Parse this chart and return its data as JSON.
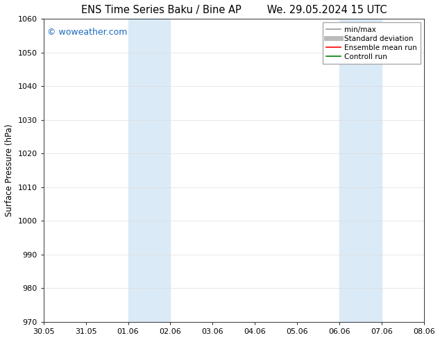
{
  "title_left": "ENS Time Series Baku / Bine AP",
  "title_right": "We. 29.05.2024 15 UTC",
  "ylabel": "Surface Pressure (hPa)",
  "ylim": [
    970,
    1060
  ],
  "yticks": [
    970,
    980,
    990,
    1000,
    1010,
    1020,
    1030,
    1040,
    1050,
    1060
  ],
  "xlim_start": 0,
  "xlim_end": 9,
  "xtick_labels": [
    "30.05",
    "31.05",
    "01.06",
    "02.06",
    "03.06",
    "04.06",
    "05.06",
    "06.06",
    "07.06",
    "08.06"
  ],
  "xtick_positions": [
    0,
    1,
    2,
    3,
    4,
    5,
    6,
    7,
    8,
    9
  ],
  "shaded_bands": [
    {
      "x_start": 2,
      "x_end": 3
    },
    {
      "x_start": 7,
      "x_end": 8
    }
  ],
  "shaded_color": "#daeaf6",
  "watermark_text": "© woweather.com",
  "watermark_color": "#1a6abf",
  "legend_entries": [
    {
      "label": "min/max",
      "color": "#999999",
      "lw": 1.2
    },
    {
      "label": "Standard deviation",
      "color": "#bbbbbb",
      "lw": 5
    },
    {
      "label": "Ensemble mean run",
      "color": "red",
      "lw": 1.2
    },
    {
      "label": "Controll run",
      "color": "green",
      "lw": 1.2
    }
  ],
  "grid_color": "#dddddd",
  "background_color": "#ffffff",
  "title_fontsize": 10.5,
  "axis_fontsize": 8.5,
  "tick_fontsize": 8,
  "legend_fontsize": 7.5
}
